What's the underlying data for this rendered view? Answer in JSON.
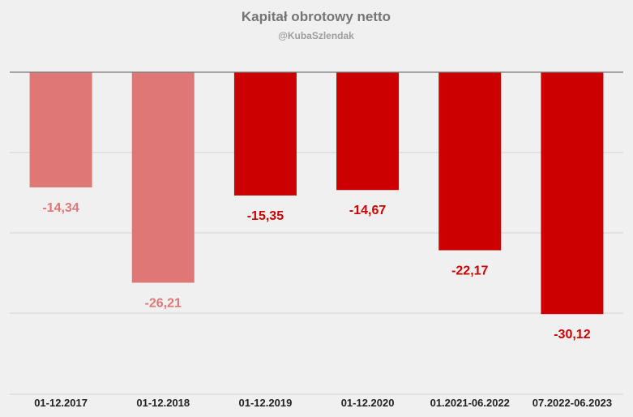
{
  "chart_data": {
    "type": "bar",
    "title": "Kapitał obrotowy netto",
    "subtitle": "@KubaSzlendak",
    "categories": [
      "01-12.2017",
      "01-12.2018",
      "01-12.2019",
      "01-12.2020",
      "01.2021-06.2022",
      "07.2022-06.2023"
    ],
    "values": [
      -14.34,
      -26.21,
      -15.35,
      -14.67,
      -22.17,
      -30.12
    ],
    "value_labels": [
      "-14,34",
      "-26,21",
      "-15,35",
      "-14,67",
      "-22,17",
      "-30,12"
    ],
    "bar_colors": [
      "#e07777",
      "#e07777",
      "#cc0000",
      "#cc0000",
      "#cc0000",
      "#cc0000"
    ],
    "label_colors": [
      "#e07777",
      "#e07777",
      "#cc0000",
      "#cc0000",
      "#cc0000",
      "#cc0000"
    ],
    "xlabel": "",
    "ylabel": "",
    "ylim": [
      -40,
      0
    ],
    "y_gridlines": [
      0,
      -10,
      -20,
      -30
    ],
    "y_tick_labels_shown": false,
    "grid": true,
    "legend": "none"
  }
}
